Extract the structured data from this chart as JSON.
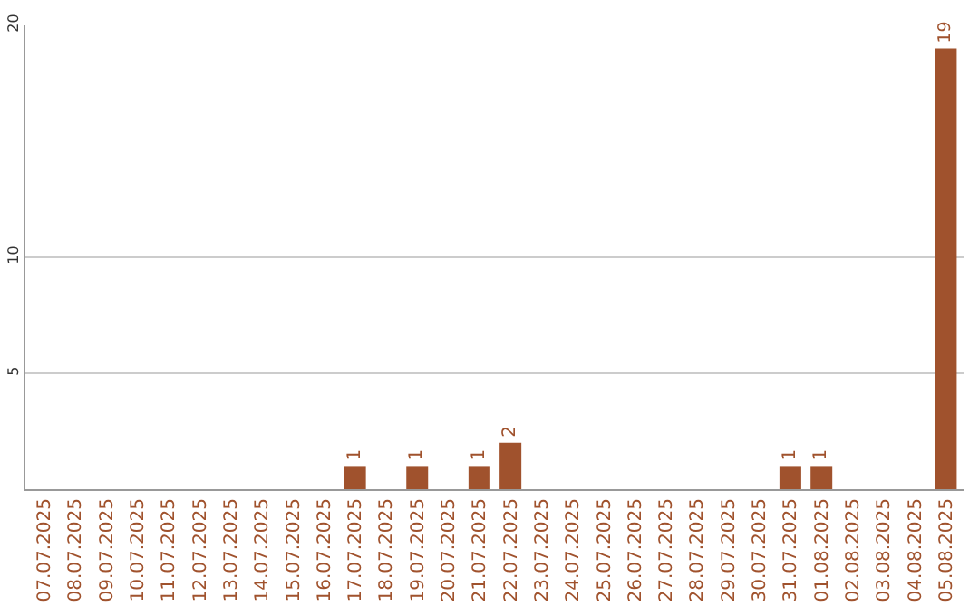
{
  "chart_data": {
    "type": "bar",
    "categories": [
      "07.07.2025",
      "08.07.2025",
      "09.07.2025",
      "10.07.2025",
      "11.07.2025",
      "12.07.2025",
      "13.07.2025",
      "14.07.2025",
      "15.07.2025",
      "16.07.2025",
      "17.07.2025",
      "18.07.2025",
      "19.07.2025",
      "20.07.2025",
      "21.07.2025",
      "22.07.2025",
      "23.07.2025",
      "24.07.2025",
      "25.07.2025",
      "26.07.2025",
      "27.07.2025",
      "28.07.2025",
      "29.07.2025",
      "30.07.2025",
      "31.07.2025",
      "01.08.2025",
      "02.08.2025",
      "03.08.2025",
      "04.08.2025",
      "05.08.2025"
    ],
    "values": [
      0,
      0,
      0,
      0,
      0,
      0,
      0,
      0,
      0,
      0,
      1,
      0,
      1,
      0,
      1,
      2,
      0,
      0,
      0,
      0,
      0,
      0,
      0,
      0,
      1,
      1,
      0,
      0,
      0,
      19
    ],
    "value_labels": [
      null,
      null,
      null,
      null,
      null,
      null,
      null,
      null,
      null,
      null,
      "1",
      null,
      "1",
      null,
      "1",
      "2",
      null,
      null,
      null,
      null,
      null,
      null,
      null,
      null,
      "1",
      "1",
      null,
      null,
      null,
      "19"
    ],
    "color": "#a0522d",
    "ylim": [
      0,
      20
    ],
    "yticks": [
      5,
      10,
      20
    ],
    "grid": "y"
  }
}
